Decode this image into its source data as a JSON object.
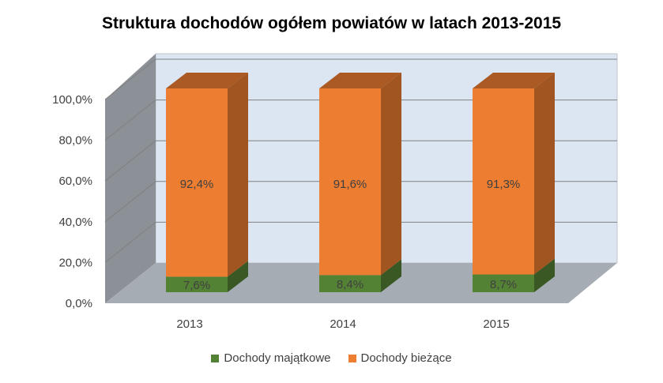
{
  "chart_data": {
    "type": "bar",
    "stacked": true,
    "three_d": true,
    "title": "Struktura dochodów ogółem powiatów w latach 2013-2015",
    "categories": [
      "2013",
      "2014",
      "2015"
    ],
    "series": [
      {
        "name": "Dochody majątkowe",
        "values": [
          7.6,
          8.4,
          8.7
        ],
        "labels": [
          "7,6%",
          "8,4%",
          "8,7%"
        ],
        "color": "#548235"
      },
      {
        "name": "Dochody bieżące",
        "values": [
          92.4,
          91.6,
          91.3
        ],
        "labels": [
          "92,4%",
          "91,6%",
          "91,3%"
        ],
        "color": "#ED7D31"
      }
    ],
    "y_ticks": [
      "0,0%",
      "20,0%",
      "40,0%",
      "60,0%",
      "80,0%",
      "100,0%"
    ],
    "ylim": [
      0,
      100
    ],
    "legend_position": "bottom",
    "grid": true
  },
  "colors": {
    "back_wall": "#DCE6F2",
    "side_wall": "#8C9198",
    "floor": "#A6ACB3",
    "gridline": "#808080"
  }
}
